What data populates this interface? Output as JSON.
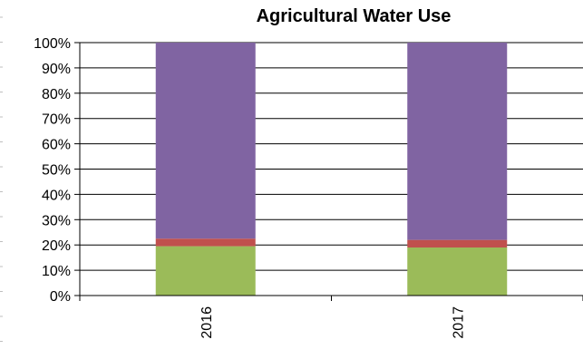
{
  "chart_data": {
    "type": "bar",
    "stacked": true,
    "percent_stacked": true,
    "title": "Agricultural Water Use",
    "categories": [
      "2016",
      "2017"
    ],
    "series": [
      {
        "color": "#9BBB59",
        "values": [
          19.5,
          19
        ]
      },
      {
        "color": "#C0504D",
        "values": [
          3,
          3
        ]
      },
      {
        "color": "#8064A2",
        "values": [
          77.5,
          78
        ]
      }
    ],
    "y_ticks": [
      "0%",
      "10%",
      "20%",
      "30%",
      "40%",
      "50%",
      "60%",
      "70%",
      "80%",
      "90%",
      "100%"
    ],
    "ylim": [
      0,
      100
    ],
    "grid": true,
    "legend": "none"
  }
}
